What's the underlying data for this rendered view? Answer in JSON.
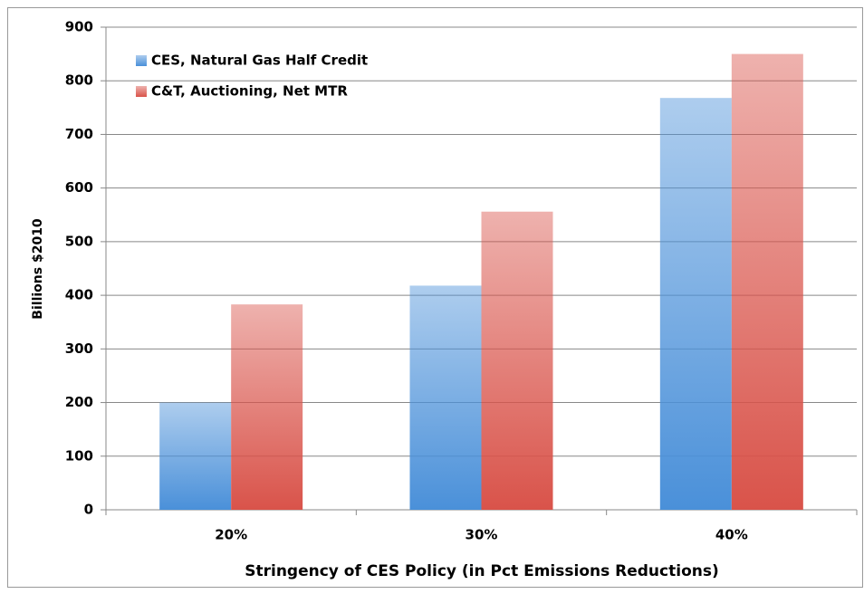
{
  "chart_data": {
    "type": "bar",
    "x_label": "Stringency of CES Policy (in Pct Emissions Reductions)",
    "y_label": "Billions $2010",
    "categories": [
      "20%",
      "30%",
      "40%"
    ],
    "series": [
      {
        "name": "CES, Natural Gas Half Credit",
        "color": "#4a90d9",
        "values": [
          200,
          418,
          768
        ]
      },
      {
        "name": "C&T, Auctioning, Net MTR",
        "color": "#d9534a",
        "values": [
          383,
          556,
          850
        ]
      }
    ],
    "ylim": [
      0,
      900
    ],
    "yticks": [
      0,
      100,
      200,
      300,
      400,
      500,
      600,
      700,
      800,
      900
    ],
    "grid": true,
    "legend": "top-left"
  }
}
